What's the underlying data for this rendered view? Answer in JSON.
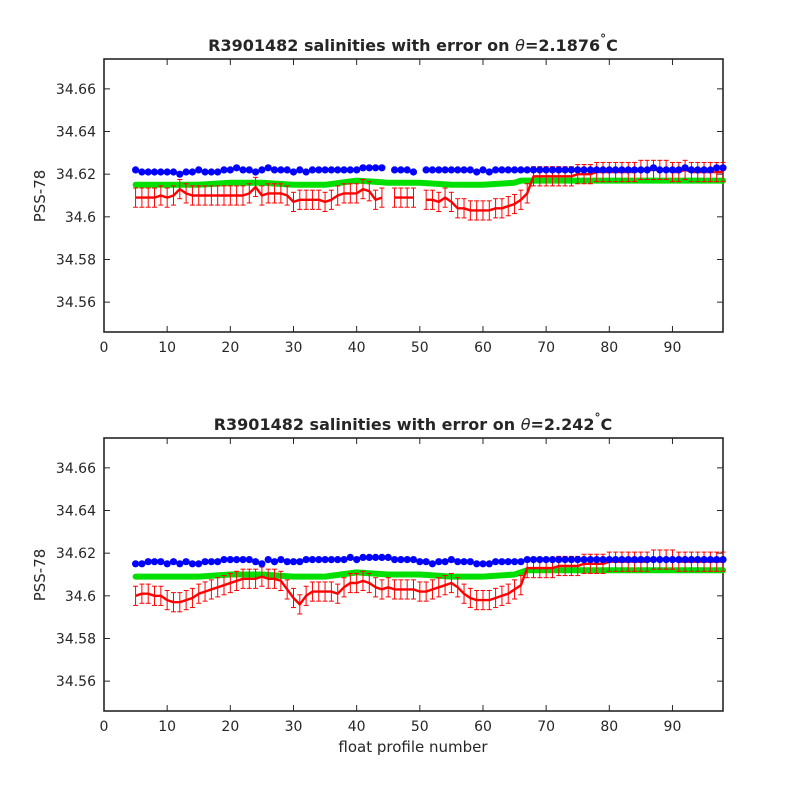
{
  "figure": {
    "xlabel": "float profile number"
  },
  "colors": {
    "blue": "#0000ff",
    "green": "#00e000",
    "red": "#ff0000",
    "axis": "#262626"
  },
  "chart_data": [
    {
      "type": "line",
      "title_prefix": "R3901482 salinities with error on ",
      "title_symbol": "θ",
      "title_value": "=2.1876",
      "title_degree": "°",
      "title_unit": "C",
      "ylabel": "PSS-78",
      "xlabel": "",
      "xlim": [
        0,
        98
      ],
      "ylim": [
        34.546,
        34.674
      ],
      "xticks": [
        0,
        10,
        20,
        30,
        40,
        50,
        60,
        70,
        80,
        90
      ],
      "yticks": [
        34.56,
        34.58,
        34.6,
        34.62,
        34.64,
        34.66
      ],
      "ytick_labels": [
        "34.56",
        "34.58",
        "34.6",
        "34.62",
        "34.64",
        "34.66"
      ],
      "grid": false,
      "series": [
        {
          "style": "dots",
          "color": "blue",
          "x": [
            5,
            6,
            7,
            8,
            9,
            10,
            11,
            12,
            13,
            14,
            15,
            16,
            17,
            18,
            19,
            20,
            21,
            22,
            23,
            24,
            25,
            26,
            27,
            28,
            29,
            30,
            31,
            32,
            33,
            34,
            35,
            36,
            37,
            38,
            39,
            40,
            41,
            42,
            43,
            44,
            46,
            47,
            48,
            49,
            51,
            52,
            53,
            54,
            55,
            56,
            57,
            58,
            59,
            60,
            61,
            62,
            63,
            64,
            65,
            66,
            67,
            68,
            69,
            70,
            71,
            72,
            73,
            74,
            75,
            76,
            77,
            78,
            79,
            80,
            81,
            82,
            83,
            84,
            85,
            86,
            87,
            88,
            89,
            90,
            91,
            92,
            93,
            94,
            95,
            96,
            97,
            98
          ],
          "y": [
            34.622,
            34.621,
            34.621,
            34.621,
            34.621,
            34.621,
            34.621,
            34.62,
            34.621,
            34.621,
            34.622,
            34.621,
            34.621,
            34.621,
            34.622,
            34.622,
            34.623,
            34.622,
            34.622,
            34.621,
            34.622,
            34.623,
            34.622,
            34.622,
            34.622,
            34.621,
            34.622,
            34.621,
            34.622,
            34.622,
            34.622,
            34.622,
            34.622,
            34.622,
            34.622,
            34.622,
            34.623,
            34.623,
            34.623,
            34.623,
            34.622,
            34.622,
            34.622,
            34.621,
            34.622,
            34.622,
            34.622,
            34.622,
            34.622,
            34.622,
            34.622,
            34.622,
            34.621,
            34.622,
            34.621,
            34.622,
            34.622,
            34.622,
            34.622,
            34.622,
            34.622,
            34.622,
            34.622,
            34.622,
            34.622,
            34.622,
            34.622,
            34.622,
            34.622,
            34.622,
            34.622,
            34.622,
            34.622,
            34.622,
            34.622,
            34.622,
            34.622,
            34.622,
            34.622,
            34.622,
            34.623,
            34.622,
            34.622,
            34.622,
            34.622,
            34.623,
            34.622,
            34.622,
            34.622,
            34.622,
            34.623,
            34.623
          ]
        },
        {
          "style": "thick-line",
          "color": "green",
          "x": [
            5,
            10,
            15,
            20,
            25,
            30,
            35,
            40,
            45,
            50,
            55,
            60,
            65,
            66,
            67,
            70,
            75,
            80,
            85,
            90,
            95,
            98
          ],
          "y": [
            34.615,
            34.615,
            34.615,
            34.616,
            34.616,
            34.615,
            34.615,
            34.617,
            34.616,
            34.616,
            34.615,
            34.615,
            34.616,
            34.617,
            34.617,
            34.617,
            34.617,
            34.617,
            34.617,
            34.617,
            34.617,
            34.617
          ]
        },
        {
          "style": "line-errorbars",
          "color": "red",
          "error": 0.0045,
          "x": [
            5,
            6,
            7,
            8,
            9,
            10,
            11,
            12,
            13,
            14,
            15,
            16,
            17,
            18,
            19,
            20,
            21,
            22,
            23,
            24,
            25,
            26,
            27,
            28,
            29,
            30,
            31,
            32,
            33,
            34,
            35,
            36,
            37,
            38,
            39,
            40,
            41,
            42,
            43,
            44,
            46,
            47,
            48,
            49,
            51,
            52,
            53,
            54,
            55,
            56,
            57,
            58,
            59,
            60,
            61,
            62,
            63,
            64,
            65,
            66,
            67,
            68,
            69,
            70,
            71,
            72,
            73,
            74,
            75,
            76,
            77,
            78,
            79,
            80,
            81,
            82,
            83,
            84,
            85,
            86,
            87,
            88,
            89,
            90,
            91,
            92,
            93,
            94,
            95,
            96,
            97,
            98
          ],
          "y": [
            34.609,
            34.609,
            34.609,
            34.609,
            34.61,
            34.609,
            34.61,
            34.613,
            34.611,
            34.61,
            34.61,
            34.61,
            34.61,
            34.61,
            34.61,
            34.61,
            34.61,
            34.61,
            34.611,
            34.614,
            34.61,
            34.611,
            34.611,
            34.611,
            34.61,
            34.607,
            34.608,
            34.608,
            34.608,
            34.608,
            34.607,
            34.608,
            34.61,
            34.611,
            34.611,
            34.611,
            34.613,
            34.612,
            34.608,
            34.609,
            34.609,
            34.609,
            34.609,
            34.609,
            34.608,
            34.608,
            34.607,
            34.609,
            34.607,
            34.604,
            34.604,
            34.603,
            34.603,
            34.603,
            34.603,
            34.604,
            34.604,
            34.605,
            34.606,
            34.608,
            34.611,
            34.619,
            34.619,
            34.619,
            34.619,
            34.619,
            34.619,
            34.619,
            34.62,
            34.62,
            34.62,
            34.621,
            34.621,
            34.621,
            34.621,
            34.621,
            34.621,
            34.621,
            34.622,
            34.622,
            34.622,
            34.622,
            34.622,
            34.621,
            34.621,
            34.622,
            34.621,
            34.621,
            34.621,
            34.621,
            34.621,
            34.621
          ],
          "gaps_after": [
            44,
            49
          ]
        }
      ]
    },
    {
      "type": "line",
      "title_prefix": "R3901482 salinities with error on ",
      "title_symbol": "θ",
      "title_value": "=2.242",
      "title_degree": "°",
      "title_unit": "C",
      "ylabel": "PSS-78",
      "xlabel": "float profile number",
      "xlim": [
        0,
        98
      ],
      "ylim": [
        34.546,
        34.674
      ],
      "xticks": [
        0,
        10,
        20,
        30,
        40,
        50,
        60,
        70,
        80,
        90
      ],
      "yticks": [
        34.56,
        34.58,
        34.6,
        34.62,
        34.64,
        34.66
      ],
      "ytick_labels": [
        "34.56",
        "34.58",
        "34.6",
        "34.62",
        "34.64",
        "34.66"
      ],
      "grid": false,
      "series": [
        {
          "style": "dots",
          "color": "blue",
          "x": [
            5,
            6,
            7,
            8,
            9,
            10,
            11,
            12,
            13,
            14,
            15,
            16,
            17,
            18,
            19,
            20,
            21,
            22,
            23,
            24,
            25,
            26,
            27,
            28,
            29,
            30,
            31,
            32,
            33,
            34,
            35,
            36,
            37,
            38,
            39,
            40,
            41,
            42,
            43,
            44,
            45,
            46,
            47,
            48,
            49,
            50,
            51,
            52,
            53,
            54,
            55,
            56,
            57,
            58,
            59,
            60,
            61,
            62,
            63,
            64,
            65,
            66,
            67,
            68,
            69,
            70,
            71,
            72,
            73,
            74,
            75,
            76,
            77,
            78,
            79,
            80,
            81,
            82,
            83,
            84,
            85,
            86,
            87,
            88,
            89,
            90,
            91,
            92,
            93,
            94,
            95,
            96,
            97,
            98
          ],
          "y": [
            34.615,
            34.615,
            34.616,
            34.616,
            34.616,
            34.615,
            34.616,
            34.615,
            34.616,
            34.615,
            34.615,
            34.616,
            34.616,
            34.616,
            34.617,
            34.617,
            34.617,
            34.617,
            34.617,
            34.616,
            34.615,
            34.617,
            34.616,
            34.617,
            34.616,
            34.616,
            34.616,
            34.617,
            34.617,
            34.617,
            34.617,
            34.617,
            34.617,
            34.617,
            34.618,
            34.617,
            34.618,
            34.618,
            34.618,
            34.618,
            34.618,
            34.617,
            34.617,
            34.617,
            34.617,
            34.616,
            34.616,
            34.615,
            34.616,
            34.616,
            34.617,
            34.616,
            34.616,
            34.616,
            34.615,
            34.615,
            34.615,
            34.616,
            34.616,
            34.616,
            34.616,
            34.616,
            34.617,
            34.617,
            34.617,
            34.617,
            34.617,
            34.617,
            34.617,
            34.617,
            34.617,
            34.617,
            34.617,
            34.617,
            34.617,
            34.617,
            34.617,
            34.617,
            34.617,
            34.617,
            34.617,
            34.617,
            34.617,
            34.617,
            34.617,
            34.617,
            34.617,
            34.617,
            34.617,
            34.617,
            34.617,
            34.617,
            34.617,
            34.617
          ]
        },
        {
          "style": "thick-line",
          "color": "green",
          "x": [
            5,
            10,
            15,
            20,
            25,
            30,
            35,
            40,
            45,
            50,
            55,
            60,
            65,
            66,
            67,
            70,
            75,
            80,
            85,
            90,
            95,
            98
          ],
          "y": [
            34.609,
            34.609,
            34.609,
            34.61,
            34.61,
            34.609,
            34.609,
            34.611,
            34.61,
            34.61,
            34.609,
            34.609,
            34.61,
            34.611,
            34.612,
            34.612,
            34.612,
            34.612,
            34.612,
            34.612,
            34.612,
            34.612
          ]
        },
        {
          "style": "line-errorbars",
          "color": "red",
          "error": 0.0045,
          "x": [
            5,
            6,
            7,
            8,
            9,
            10,
            11,
            12,
            13,
            14,
            15,
            16,
            17,
            18,
            19,
            20,
            21,
            22,
            23,
            24,
            25,
            26,
            27,
            28,
            29,
            30,
            31,
            32,
            33,
            34,
            35,
            36,
            37,
            38,
            39,
            40,
            41,
            42,
            43,
            44,
            45,
            46,
            47,
            48,
            49,
            50,
            51,
            52,
            53,
            54,
            55,
            56,
            57,
            58,
            59,
            60,
            61,
            62,
            63,
            64,
            65,
            66,
            67,
            68,
            69,
            70,
            71,
            72,
            73,
            74,
            75,
            76,
            77,
            78,
            79,
            80,
            81,
            82,
            83,
            84,
            85,
            86,
            87,
            88,
            89,
            90,
            91,
            92,
            93,
            94,
            95,
            96,
            97,
            98
          ],
          "y": [
            34.6,
            34.601,
            34.601,
            34.6,
            34.6,
            34.598,
            34.597,
            34.597,
            34.598,
            34.599,
            34.601,
            34.602,
            34.603,
            34.604,
            34.605,
            34.606,
            34.607,
            34.608,
            34.608,
            34.608,
            34.609,
            34.608,
            34.608,
            34.607,
            34.603,
            34.599,
            34.596,
            34.6,
            34.602,
            34.602,
            34.602,
            34.602,
            34.601,
            34.604,
            34.606,
            34.606,
            34.607,
            34.606,
            34.604,
            34.603,
            34.604,
            34.603,
            34.603,
            34.603,
            34.603,
            34.602,
            34.602,
            34.603,
            34.604,
            34.605,
            34.606,
            34.604,
            34.601,
            34.599,
            34.598,
            34.598,
            34.598,
            34.599,
            34.6,
            34.601,
            34.603,
            34.605,
            34.613,
            34.613,
            34.613,
            34.613,
            34.613,
            34.614,
            34.614,
            34.614,
            34.614,
            34.615,
            34.615,
            34.615,
            34.615,
            34.616,
            34.616,
            34.616,
            34.616,
            34.616,
            34.616,
            34.616,
            34.617,
            34.617,
            34.617,
            34.617,
            34.616,
            34.616,
            34.616,
            34.616,
            34.616,
            34.616,
            34.616,
            34.616
          ],
          "gaps_after": []
        }
      ]
    }
  ]
}
